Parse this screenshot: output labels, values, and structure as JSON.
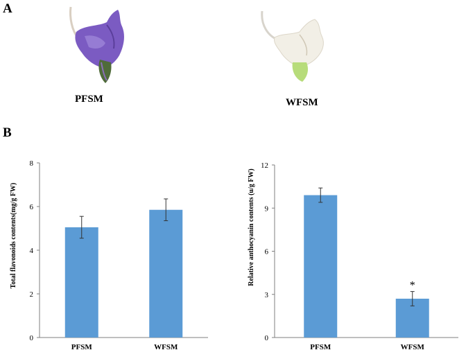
{
  "panel_a": {
    "letter": "A",
    "images": [
      {
        "label": "PFSM",
        "description_icon": "purple-flower-image"
      },
      {
        "label": "WFSM",
        "description_icon": "white-flower-image"
      }
    ]
  },
  "panel_b": {
    "letter": "B"
  },
  "colors": {
    "bar": "#5b9bd5",
    "axis": "#7f7f7f"
  },
  "chart_data": [
    {
      "type": "bar",
      "categories": [
        "PFSM",
        "WFSM"
      ],
      "values": [
        5.05,
        5.85
      ],
      "errors": [
        0.5,
        0.5
      ],
      "ylabel": "Total flavonoids contents(mg/g FW)",
      "xlabel": "",
      "ylim": [
        0,
        8
      ],
      "yticks": [
        "0",
        "2",
        "4",
        "6",
        "8"
      ],
      "annotations": [
        "",
        ""
      ],
      "grid": false
    },
    {
      "type": "bar",
      "categories": [
        "PFSM",
        "WFSM"
      ],
      "values": [
        9.9,
        2.7
      ],
      "errors": [
        0.5,
        0.5
      ],
      "ylabel": "Relative anthocyanin contents (u/g FW)",
      "xlabel": "",
      "ylim": [
        0,
        12
      ],
      "yticks": [
        "0",
        "3",
        "6",
        "9",
        "12"
      ],
      "annotations": [
        "",
        "*"
      ],
      "grid": false
    }
  ]
}
